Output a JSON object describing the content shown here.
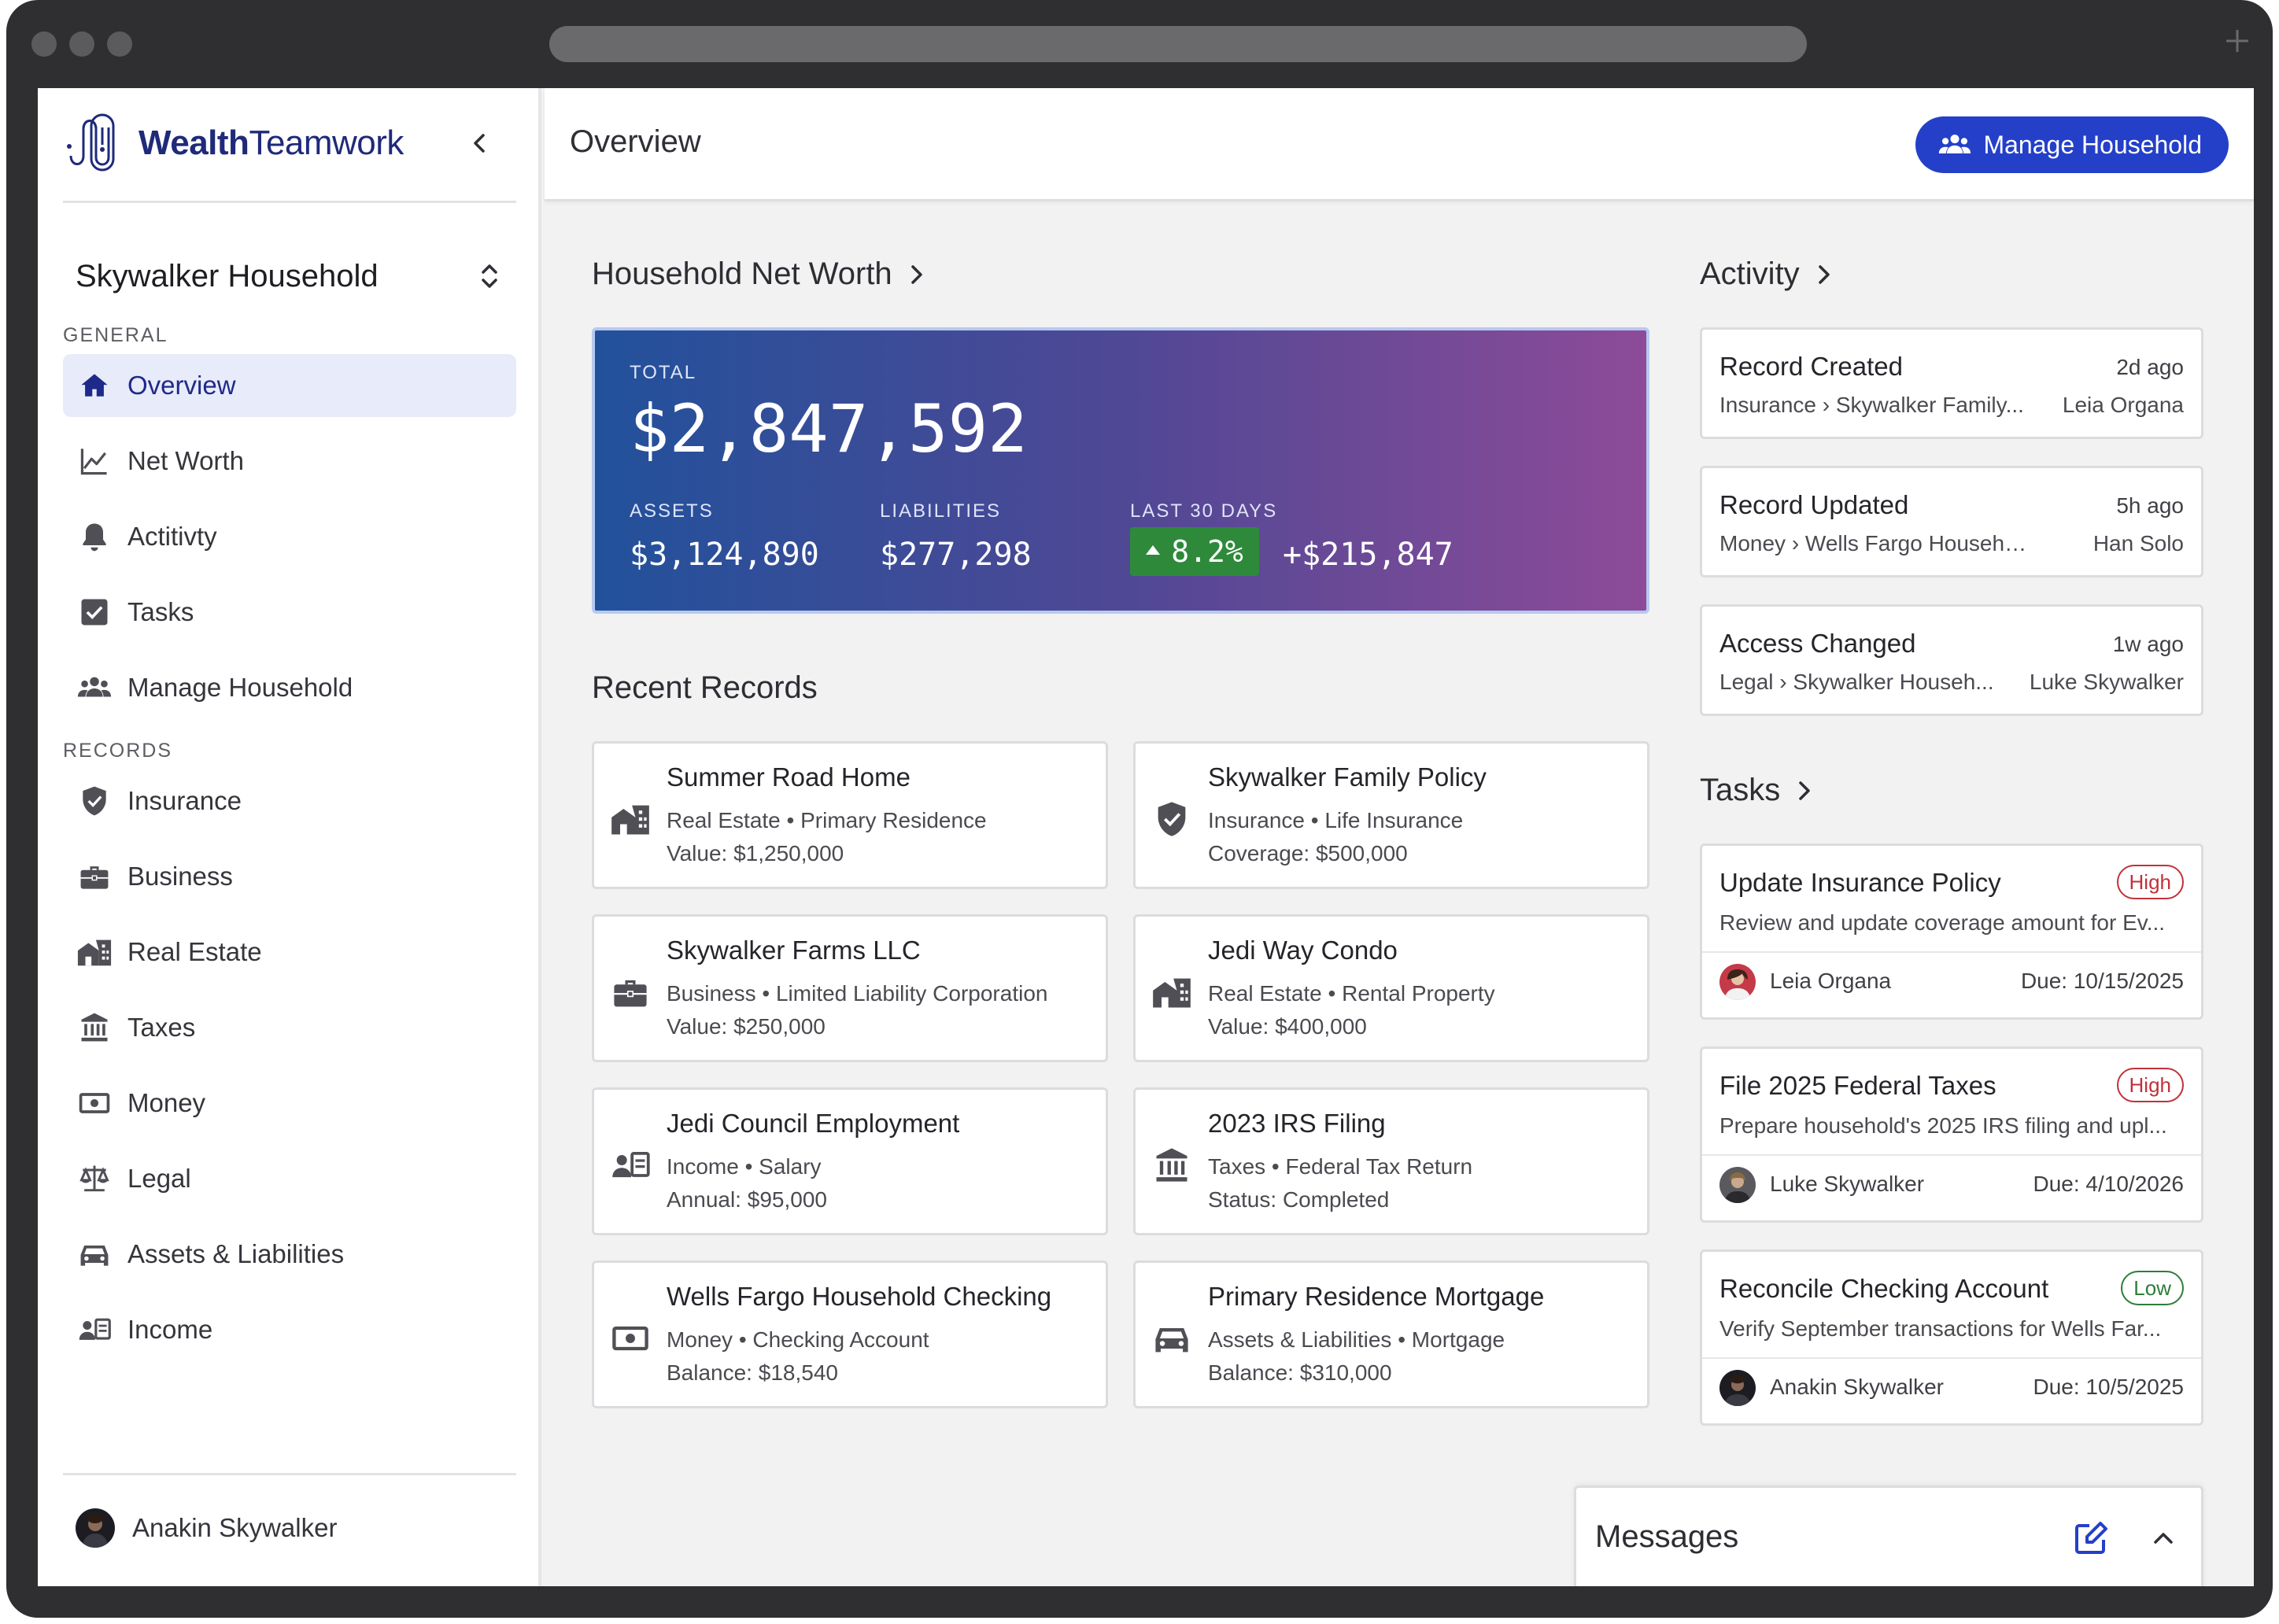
{
  "app": {
    "brand_bold": "Wealth",
    "brand_light": "Teamwork"
  },
  "sidebar": {
    "household": "Skywalker Household",
    "general_label": "GENERAL",
    "records_label": "RECORDS",
    "general_items": [
      {
        "label": "Overview",
        "icon": "home-icon",
        "active": true
      },
      {
        "label": "Net Worth",
        "icon": "line-chart-icon"
      },
      {
        "label": "Actitivty",
        "icon": "bell-icon"
      },
      {
        "label": "Tasks",
        "icon": "checkbox-icon"
      },
      {
        "label": "Manage Household",
        "icon": "people-icon"
      }
    ],
    "record_items": [
      {
        "label": "Insurance",
        "icon": "shield-icon"
      },
      {
        "label": "Business",
        "icon": "briefcase-icon"
      },
      {
        "label": "Real Estate",
        "icon": "building-icon"
      },
      {
        "label": "Taxes",
        "icon": "bank-icon"
      },
      {
        "label": "Money",
        "icon": "banknote-icon"
      },
      {
        "label": "Legal",
        "icon": "scales-icon"
      },
      {
        "label": "Assets & Liabilities",
        "icon": "car-icon"
      },
      {
        "label": "Income",
        "icon": "id-card-icon"
      }
    ],
    "user": "Anakin Skywalker"
  },
  "header": {
    "title": "Overview",
    "manage_button": "Manage Household"
  },
  "networth": {
    "title": "Household Net Worth",
    "total_label": "TOTAL",
    "total": "$2,847,592",
    "assets_label": "ASSETS",
    "assets": "$3,124,890",
    "liabilities_label": "LIABILITIES",
    "liabilities": "$277,298",
    "change_label": "LAST 30 DAYS",
    "change_pct": "8.2%",
    "change_amount": "+$215,847"
  },
  "records": {
    "title": "Recent Records",
    "items": [
      {
        "title": "Summer Road Home",
        "sub": "Real Estate • Primary Residence",
        "value": "Value: $1,250,000",
        "icon": "building-icon"
      },
      {
        "title": "Skywalker Family Policy",
        "sub": "Insurance • Life Insurance",
        "value": "Coverage: $500,000",
        "icon": "shield-icon"
      },
      {
        "title": "Skywalker Farms LLC",
        "sub": "Business • Limited Liability Corporation",
        "value": "Value: $250,000",
        "icon": "briefcase-icon"
      },
      {
        "title": "Jedi Way Condo",
        "sub": "Real Estate • Rental Property",
        "value": "Value: $400,000",
        "icon": "building-icon"
      },
      {
        "title": "Jedi Council Employment",
        "sub": "Income • Salary",
        "value": "Annual: $95,000",
        "icon": "id-card-icon"
      },
      {
        "title": "2023 IRS Filing",
        "sub": "Taxes • Federal Tax Return",
        "value": "Status: Completed",
        "icon": "bank-icon"
      },
      {
        "title": "Wells Fargo Household Checking",
        "sub": "Money • Checking Account",
        "value": "Balance: $18,540",
        "icon": "banknote-icon"
      },
      {
        "title": "Primary Residence Mortgage",
        "sub": "Assets & Liabilities • Mortgage",
        "value": "Balance: $310,000",
        "icon": "car-icon"
      }
    ]
  },
  "activity": {
    "title": "Activity",
    "items": [
      {
        "title": "Record Created",
        "time": "2d ago",
        "path": "Insurance › Skywalker Family...",
        "user": "Leia Organa"
      },
      {
        "title": "Record Updated",
        "time": "5h ago",
        "path": "Money › Wells Fargo Household...",
        "user": "Han Solo"
      },
      {
        "title": "Access Changed",
        "time": "1w ago",
        "path": "Legal › Skywalker Househ...",
        "user": "Luke Skywalker"
      }
    ]
  },
  "tasks": {
    "title": "Tasks",
    "items": [
      {
        "title": "Update Insurance Policy",
        "priority": "High",
        "desc": "Review and update coverage amount for Ev...",
        "assignee": "Leia Organa",
        "due": "Due: 10/15/2025"
      },
      {
        "title": "File 2025 Federal Taxes",
        "priority": "High",
        "desc": "Prepare household's 2025 IRS filing and upl...",
        "assignee": "Luke Skywalker",
        "due": "Due: 4/10/2026"
      },
      {
        "title": "Reconcile Checking Account",
        "priority": "Low",
        "desc": "Verify September transactions for Wells Far...",
        "assignee": "Anakin Skywalker",
        "due": "Due: 10/5/2025"
      }
    ]
  },
  "messages": {
    "title": "Messages"
  },
  "colors": {
    "brand": "#1f2a7a",
    "primary_button": "#2440c9",
    "positive": "#2e8a3a",
    "high_priority": "#c0323a",
    "low_priority": "#2e7d3a"
  }
}
